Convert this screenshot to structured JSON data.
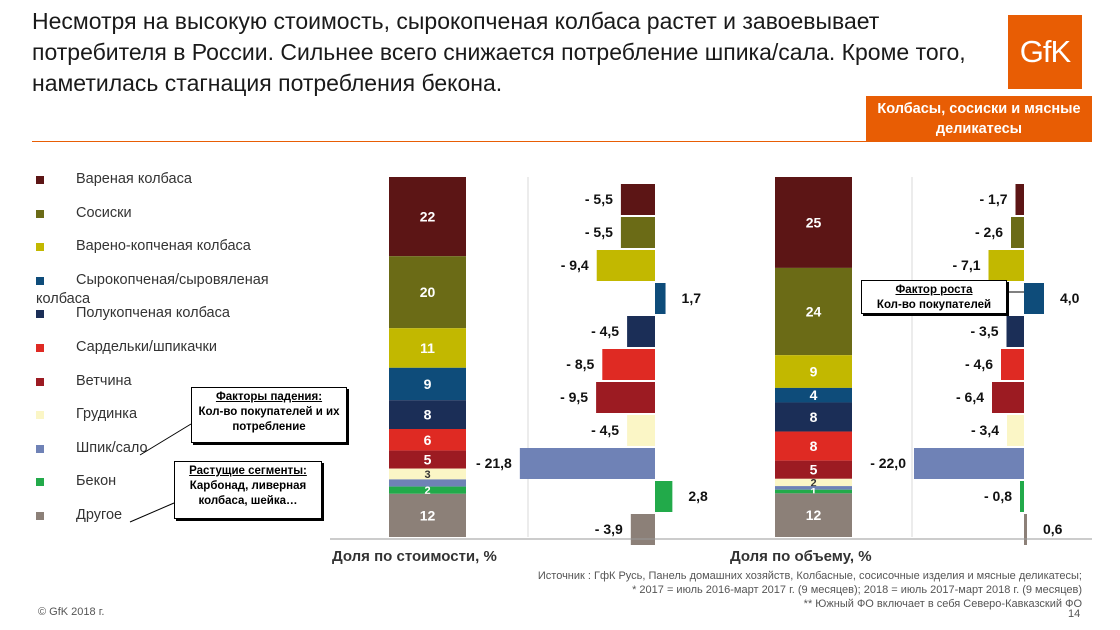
{
  "headline": "Несмотря на высокую стоимость, сырокопченая колбаса растет и завоевывает потребителя в России. Сильнее всего снижается потребление шпика/сала. Кроме того, наметилась стагнация потребления бекона.",
  "logo_text": "GfK",
  "badge": "Колбасы, сосиски и мясные деликатесы",
  "callouts": {
    "decline_title": "Факторы падения:",
    "decline_text": "Кол-во покупателей и их потребление",
    "growth_title": "Растущие сегменты:",
    "growth_text": "Карбонад, ливерная колбаса, шейка…",
    "factor_title": "Фактор роста",
    "factor_text": "Кол-во покупателей"
  },
  "footer": {
    "source_line1": "Источник : ГфК Русь, Панель домашних хозяйств, Колбасные, сосисочные изделия и мясные деликатесы;",
    "source_line2": "* 2017 = июль 2016-март 2017 г. (9 месяцев); 2018 = июль 2017-март 2018 г. (9 месяцев)",
    "source_line3": "** Южный ФО включает в себя Северо-Кавказский ФО",
    "copyright": "© GfK 2018 г.",
    "page": "14"
  },
  "chart_data": [
    {
      "type": "bar",
      "subtype": "stacked-share-with-change",
      "title": "Доля по стоимости, %",
      "categories": [
        "Вареная колбаса",
        "Сосиски",
        "Варено-копченая колбаса",
        "Сырокопченая/сыровяленая колбаса",
        "Полукопченая колбаса",
        "Сардельки/шпикачки",
        "Ветчина",
        "Грудинка",
        "Шпик/сало",
        "Бекон",
        "Другое"
      ],
      "colors": [
        "#5c1515",
        "#6b6b16",
        "#c2b800",
        "#0e4c7a",
        "#1b2e57",
        "#df2a23",
        "#9c1b22",
        "#fbf6c6",
        "#6f82b6",
        "#22aa4a",
        "#8c8078"
      ],
      "share": [
        22,
        20,
        11,
        9,
        8,
        6,
        5,
        3,
        2,
        2,
        12
      ],
      "share_labels": [
        "22",
        "20",
        "11",
        "9",
        "8",
        "6",
        "5",
        "3",
        "",
        "2",
        "12"
      ],
      "change": [
        -5.5,
        -5.5,
        -9.4,
        1.7,
        -4.5,
        -8.5,
        -9.5,
        -4.5,
        -21.8,
        2.8,
        -3.9
      ],
      "change_labels": [
        "- 5,5",
        "- 5,5",
        "- 9,4",
        "1,7",
        "- 4,5",
        "- 8,5",
        "- 9,5",
        "- 4,5",
        "- 21,8",
        "2,8",
        "- 3,9"
      ]
    },
    {
      "type": "bar",
      "subtype": "stacked-share-with-change",
      "title": "Доля по объему, %",
      "categories": [
        "Вареная колбаса",
        "Сосиски",
        "Варено-копченая колбаса",
        "Сырокопченая/сыровяленая колбаса",
        "Полукопченая колбаса",
        "Сардельки/шпикачки",
        "Ветчина",
        "Грудинка",
        "Шпик/сало",
        "Бекон",
        "Другое"
      ],
      "share": [
        25,
        24,
        9,
        4,
        8,
        8,
        5,
        2,
        1,
        1,
        12
      ],
      "share_labels": [
        "25",
        "24",
        "9",
        "4",
        "8",
        "8",
        "5",
        "2",
        "",
        "1",
        "12"
      ],
      "change": [
        -1.7,
        -2.6,
        -7.1,
        4.0,
        -3.5,
        -4.6,
        -6.4,
        -3.4,
        -22.0,
        -0.8,
        0.6
      ],
      "change_labels": [
        "- 1,7",
        "- 2,6",
        "- 7,1",
        "4,0",
        "- 3,5",
        "- 4,6",
        "- 6,4",
        "- 3,4",
        "- 22,0",
        "- 0,8",
        "0,6"
      ]
    }
  ]
}
